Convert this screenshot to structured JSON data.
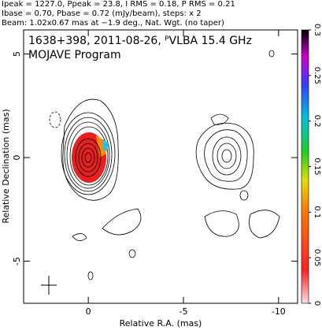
{
  "header": [
    "Ipeak = 1227.0, Ppeak = 23.8, I RMS = 0.18, P RMS = 0.21",
    "Ibase = 0.70, Pbase = 0.72 (mJy/beam), steps: x 2",
    "Beam: 1.02x0.67 mas at −1.9 deg., Nat. Wgt. (no taper)"
  ],
  "chart_data": {
    "type": "contour",
    "annotations": [
      "1638+398, 2011-08-26, ᴾVLBA 15.4 GHz",
      "MOJAVE Program"
    ],
    "xlabel": "Relative R.A. (mas)",
    "ylabel": "Relative Declination (mas)",
    "xlim": [
      3.4,
      -11
    ],
    "xticks": [
      0,
      -5,
      -10
    ],
    "ylim": [
      -7.03,
      6.16
    ],
    "yticks": [
      -5,
      0,
      5
    ],
    "colorbar_lim": [
      0,
      0.3
    ],
    "colorbar_ticks": [
      0,
      0.05,
      0.1,
      0.15,
      0.2,
      0.25,
      0.3
    ]
  }
}
